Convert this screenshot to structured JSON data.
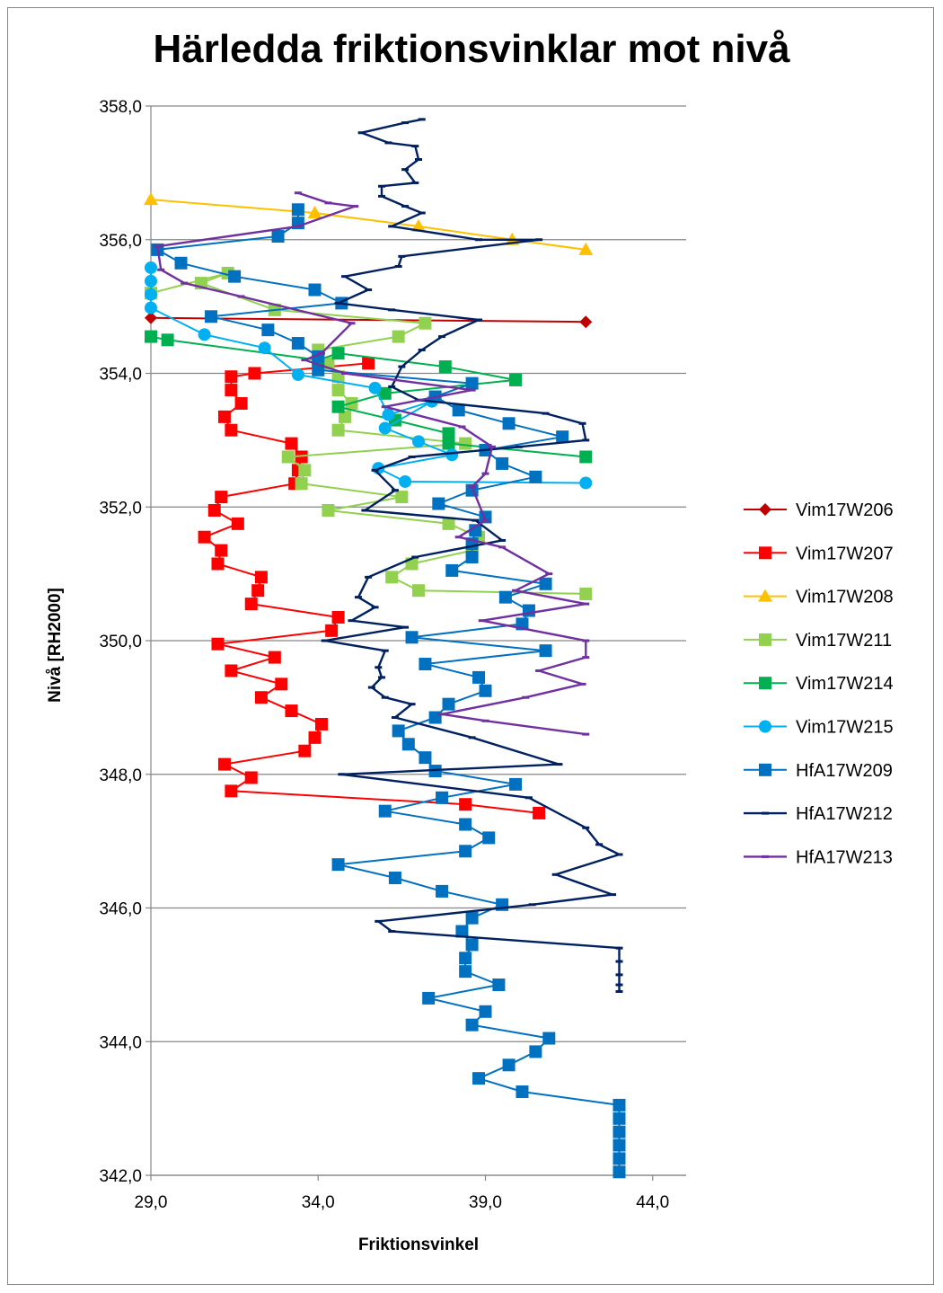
{
  "chart_data": {
    "type": "scatter",
    "title": "Härledda friktionsvinklar mot nivå",
    "xlabel": "Friktionsvinkel",
    "ylabel": "Nivå [RH2000]",
    "xlim": [
      29,
      45
    ],
    "ylim": [
      342,
      358
    ],
    "xticks": [
      "29,0",
      "34,0",
      "39,0",
      "44,0"
    ],
    "yticks": [
      "358,0",
      "356,0",
      "354,0",
      "352,0",
      "350,0",
      "348,0",
      "346,0",
      "344,0",
      "342,0"
    ],
    "grid": "horizontal",
    "legend": "right",
    "series": [
      {
        "name": "Vim17W206",
        "color": "#C00000",
        "marker": "diamond",
        "marker_color": "#C00000",
        "points": [
          [
            29.0,
            354.83
          ],
          [
            42.0,
            354.77
          ]
        ]
      },
      {
        "name": "Vim17W207",
        "color": "#FF0000",
        "marker": "square",
        "marker_color": "#FF0000",
        "points": [
          [
            35.5,
            354.15
          ],
          [
            32.1,
            354.0
          ],
          [
            31.4,
            353.95
          ],
          [
            31.4,
            353.75
          ],
          [
            31.7,
            353.55
          ],
          [
            31.2,
            353.35
          ],
          [
            31.4,
            353.15
          ],
          [
            33.2,
            352.95
          ],
          [
            33.5,
            352.75
          ],
          [
            33.4,
            352.55
          ],
          [
            33.3,
            352.35
          ],
          [
            31.1,
            352.15
          ],
          [
            30.9,
            351.95
          ],
          [
            31.6,
            351.75
          ],
          [
            30.6,
            351.55
          ],
          [
            31.1,
            351.35
          ],
          [
            31.0,
            351.15
          ],
          [
            32.3,
            350.95
          ],
          [
            32.2,
            350.75
          ],
          [
            32.0,
            350.55
          ],
          [
            34.6,
            350.35
          ],
          [
            34.4,
            350.15
          ],
          [
            31.0,
            349.95
          ],
          [
            32.7,
            349.75
          ],
          [
            31.4,
            349.55
          ],
          [
            32.9,
            349.35
          ],
          [
            32.3,
            349.15
          ],
          [
            33.2,
            348.95
          ],
          [
            34.1,
            348.75
          ],
          [
            33.9,
            348.55
          ],
          [
            33.6,
            348.35
          ],
          [
            31.2,
            348.15
          ],
          [
            32.0,
            347.95
          ],
          [
            31.4,
            347.75
          ],
          [
            38.4,
            347.55
          ],
          [
            40.6,
            347.42
          ]
        ]
      },
      {
        "name": "Vim17W208",
        "color": "#FFC000",
        "marker": "triangle",
        "marker_color": "#FFC000",
        "points": [
          [
            29.0,
            356.6
          ],
          [
            33.9,
            356.4
          ],
          [
            37.0,
            356.2
          ],
          [
            39.8,
            356.0
          ],
          [
            42.0,
            355.85
          ]
        ]
      },
      {
        "name": "Vim17W211",
        "color": "#92D050",
        "marker": "square",
        "marker_color": "#92D050",
        "points": [
          [
            29.0,
            355.2
          ],
          [
            31.3,
            355.5
          ],
          [
            30.5,
            355.35
          ],
          [
            32.7,
            354.95
          ],
          [
            37.2,
            354.75
          ],
          [
            36.4,
            354.55
          ],
          [
            34.0,
            354.35
          ],
          [
            34.3,
            354.15
          ],
          [
            34.6,
            353.95
          ],
          [
            34.6,
            353.75
          ],
          [
            35.0,
            353.55
          ],
          [
            34.8,
            353.35
          ],
          [
            34.6,
            353.15
          ],
          [
            38.4,
            352.95
          ],
          [
            33.1,
            352.75
          ],
          [
            33.6,
            352.55
          ],
          [
            33.5,
            352.35
          ],
          [
            36.5,
            352.15
          ],
          [
            34.3,
            351.95
          ],
          [
            37.9,
            351.75
          ],
          [
            38.8,
            351.55
          ],
          [
            38.6,
            351.35
          ],
          [
            36.8,
            351.15
          ],
          [
            36.2,
            350.95
          ],
          [
            37.0,
            350.75
          ],
          [
            42.0,
            350.7
          ]
        ]
      },
      {
        "name": "Vim17W214",
        "color": "#00B050",
        "marker": "square",
        "marker_color": "#00B050",
        "points": [
          [
            29.0,
            354.55
          ],
          [
            29.5,
            354.5
          ],
          [
            34.0,
            354.2
          ],
          [
            34.6,
            354.3
          ],
          [
            37.8,
            354.1
          ],
          [
            39.9,
            353.9
          ],
          [
            36.0,
            353.7
          ],
          [
            34.6,
            353.5
          ],
          [
            36.3,
            353.3
          ],
          [
            37.9,
            353.1
          ],
          [
            37.9,
            352.95
          ],
          [
            42.0,
            352.75
          ]
        ]
      },
      {
        "name": "Vim17W215",
        "color": "#00B0F0",
        "marker": "circle",
        "marker_color": "#00B0F0",
        "points": [
          [
            29.0,
            355.58
          ],
          [
            29.0,
            355.38
          ],
          [
            29.0,
            355.18
          ],
          [
            29.0,
            354.98
          ],
          [
            30.6,
            354.58
          ],
          [
            32.4,
            354.38
          ],
          [
            33.4,
            353.98
          ],
          [
            35.7,
            353.78
          ],
          [
            36.1,
            353.38
          ],
          [
            37.4,
            353.58
          ],
          [
            36.0,
            353.18
          ],
          [
            37.0,
            352.98
          ],
          [
            38.0,
            352.78
          ],
          [
            35.8,
            352.58
          ],
          [
            36.6,
            352.38
          ],
          [
            42.0,
            352.36
          ]
        ]
      },
      {
        "name": "HfA17W209",
        "color": "#0070C0",
        "marker": "square",
        "marker_color": "#0070C0",
        "points": [
          [
            33.4,
            356.45
          ],
          [
            33.4,
            356.25
          ],
          [
            32.8,
            356.05
          ],
          [
            29.2,
            355.85
          ],
          [
            29.9,
            355.65
          ],
          [
            31.5,
            355.45
          ],
          [
            33.9,
            355.25
          ],
          [
            34.7,
            355.05
          ],
          [
            30.8,
            354.85
          ],
          [
            32.5,
            354.65
          ],
          [
            33.4,
            354.45
          ],
          [
            34.0,
            354.25
          ],
          [
            34.0,
            354.05
          ],
          [
            38.6,
            353.85
          ],
          [
            37.5,
            353.65
          ],
          [
            38.2,
            353.45
          ],
          [
            39.7,
            353.25
          ],
          [
            41.3,
            353.05
          ],
          [
            39.0,
            352.85
          ],
          [
            39.5,
            352.65
          ],
          [
            40.5,
            352.45
          ],
          [
            38.6,
            352.25
          ],
          [
            37.6,
            352.05
          ],
          [
            39.0,
            351.85
          ],
          [
            38.7,
            351.65
          ],
          [
            38.6,
            351.45
          ],
          [
            38.6,
            351.25
          ],
          [
            38.0,
            351.05
          ],
          [
            40.8,
            350.85
          ],
          [
            39.6,
            350.65
          ],
          [
            40.3,
            350.45
          ],
          [
            40.1,
            350.25
          ],
          [
            36.8,
            350.05
          ],
          [
            40.8,
            349.85
          ],
          [
            37.2,
            349.65
          ],
          [
            38.8,
            349.45
          ],
          [
            39.0,
            349.25
          ],
          [
            37.9,
            349.05
          ],
          [
            37.5,
            348.85
          ],
          [
            36.4,
            348.65
          ],
          [
            36.7,
            348.45
          ],
          [
            37.2,
            348.25
          ],
          [
            37.5,
            348.05
          ],
          [
            39.9,
            347.85
          ],
          [
            37.7,
            347.65
          ],
          [
            36.0,
            347.45
          ],
          [
            38.4,
            347.25
          ],
          [
            39.1,
            347.05
          ],
          [
            38.4,
            346.85
          ],
          [
            34.6,
            346.65
          ],
          [
            36.3,
            346.45
          ],
          [
            37.7,
            346.25
          ],
          [
            39.5,
            346.05
          ],
          [
            38.6,
            345.85
          ],
          [
            38.3,
            345.65
          ],
          [
            38.6,
            345.45
          ],
          [
            38.4,
            345.25
          ],
          [
            38.4,
            345.05
          ],
          [
            39.4,
            344.85
          ],
          [
            37.3,
            344.65
          ],
          [
            39.0,
            344.45
          ],
          [
            38.6,
            344.25
          ],
          [
            40.9,
            344.05
          ],
          [
            40.5,
            343.85
          ],
          [
            39.7,
            343.65
          ],
          [
            38.8,
            343.45
          ],
          [
            40.1,
            343.25
          ],
          [
            43.0,
            343.05
          ],
          [
            43.0,
            342.85
          ],
          [
            43.0,
            342.65
          ],
          [
            43.0,
            342.45
          ],
          [
            43.0,
            342.25
          ],
          [
            43.0,
            342.05
          ]
        ]
      },
      {
        "name": "HfA17W212",
        "color": "#002060",
        "marker": "dash",
        "marker_color": "#002060",
        "points": [
          [
            37.1,
            357.8
          ],
          [
            36.6,
            357.75
          ],
          [
            35.3,
            357.6
          ],
          [
            36.1,
            357.45
          ],
          [
            36.9,
            357.4
          ],
          [
            37.0,
            357.2
          ],
          [
            36.6,
            357.05
          ],
          [
            36.9,
            356.85
          ],
          [
            35.9,
            356.8
          ],
          [
            35.9,
            356.65
          ],
          [
            36.6,
            356.5
          ],
          [
            37.1,
            356.4
          ],
          [
            36.2,
            356.2
          ],
          [
            38.8,
            356.0
          ],
          [
            40.6,
            356.0
          ],
          [
            36.5,
            355.75
          ],
          [
            36.4,
            355.6
          ],
          [
            34.8,
            355.45
          ],
          [
            35.5,
            355.25
          ],
          [
            34.6,
            355.05
          ],
          [
            36.2,
            354.95
          ],
          [
            38.8,
            354.8
          ],
          [
            37.7,
            354.55
          ],
          [
            37.1,
            354.35
          ],
          [
            36.5,
            354.1
          ],
          [
            36.2,
            353.8
          ],
          [
            37.0,
            353.6
          ],
          [
            40.8,
            353.4
          ],
          [
            41.9,
            353.25
          ],
          [
            42.0,
            353.0
          ],
          [
            40.0,
            352.9
          ],
          [
            36.8,
            352.75
          ],
          [
            35.7,
            352.55
          ],
          [
            36.3,
            352.25
          ],
          [
            35.4,
            351.95
          ],
          [
            38.7,
            351.8
          ],
          [
            39.5,
            351.5
          ],
          [
            36.9,
            351.25
          ],
          [
            35.5,
            350.95
          ],
          [
            35.2,
            350.65
          ],
          [
            35.7,
            350.5
          ],
          [
            35.0,
            350.3
          ],
          [
            36.6,
            350.2
          ],
          [
            34.2,
            350.0
          ],
          [
            36.0,
            349.85
          ],
          [
            35.8,
            349.6
          ],
          [
            35.9,
            349.45
          ],
          [
            35.6,
            349.3
          ],
          [
            36.0,
            349.15
          ],
          [
            36.8,
            349.05
          ],
          [
            36.3,
            348.85
          ],
          [
            38.6,
            348.55
          ],
          [
            41.2,
            348.15
          ],
          [
            34.7,
            348.0
          ],
          [
            40.3,
            347.65
          ],
          [
            42.0,
            347.2
          ],
          [
            42.4,
            346.95
          ],
          [
            43.0,
            346.8
          ],
          [
            41.1,
            346.5
          ],
          [
            42.8,
            346.2
          ],
          [
            40.4,
            346.05
          ],
          [
            35.8,
            345.8
          ],
          [
            36.2,
            345.65
          ],
          [
            43.0,
            345.4
          ],
          [
            43.0,
            345.2
          ],
          [
            43.0,
            345.0
          ],
          [
            43.0,
            344.85
          ],
          [
            43.0,
            344.75
          ]
        ]
      },
      {
        "name": "HfA17W213",
        "color": "#7030A0",
        "marker": "dash",
        "marker_color": "#7030A0",
        "points": [
          [
            33.4,
            356.7
          ],
          [
            34.3,
            356.55
          ],
          [
            35.1,
            356.5
          ],
          [
            33.4,
            356.2
          ],
          [
            29.2,
            355.9
          ],
          [
            29.3,
            355.55
          ],
          [
            30.0,
            355.35
          ],
          [
            31.7,
            355.15
          ],
          [
            35.0,
            354.75
          ],
          [
            34.1,
            354.3
          ],
          [
            33.6,
            354.2
          ],
          [
            34.8,
            354.0
          ],
          [
            38.6,
            353.75
          ],
          [
            36.0,
            353.5
          ],
          [
            38.3,
            353.2
          ],
          [
            39.2,
            352.9
          ],
          [
            39.0,
            352.5
          ],
          [
            38.6,
            352.3
          ],
          [
            39.0,
            351.8
          ],
          [
            38.2,
            351.55
          ],
          [
            39.5,
            351.4
          ],
          [
            40.9,
            351.0
          ],
          [
            39.9,
            350.75
          ],
          [
            42.0,
            350.55
          ],
          [
            38.9,
            350.3
          ],
          [
            42.0,
            350.0
          ],
          [
            42.0,
            349.75
          ],
          [
            40.6,
            349.55
          ],
          [
            41.9,
            349.35
          ],
          [
            40.2,
            349.15
          ],
          [
            37.7,
            348.9
          ],
          [
            39.0,
            348.8
          ],
          [
            42.0,
            348.6
          ]
        ]
      }
    ]
  }
}
